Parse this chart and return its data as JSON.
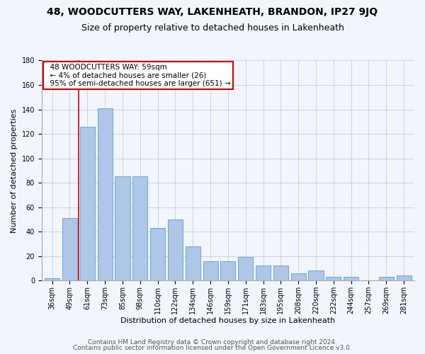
{
  "title": "48, WOODCUTTERS WAY, LAKENHEATH, BRANDON, IP27 9JQ",
  "subtitle": "Size of property relative to detached houses in Lakenheath",
  "xlabel": "Distribution of detached houses by size in Lakenheath",
  "ylabel": "Number of detached properties",
  "categories": [
    "36sqm",
    "49sqm",
    "61sqm",
    "73sqm",
    "85sqm",
    "98sqm",
    "110sqm",
    "122sqm",
    "134sqm",
    "146sqm",
    "159sqm",
    "171sqm",
    "183sqm",
    "195sqm",
    "208sqm",
    "220sqm",
    "232sqm",
    "244sqm",
    "257sqm",
    "269sqm",
    "281sqm"
  ],
  "values": [
    2,
    51,
    126,
    141,
    85,
    85,
    43,
    50,
    28,
    16,
    16,
    19,
    12,
    12,
    6,
    8,
    3,
    3,
    0,
    3,
    4
  ],
  "bar_color": "#aec6e8",
  "bar_edge_color": "#5a9fd4",
  "annotation_text_line1": "48 WOODCUTTERS WAY: 59sqm",
  "annotation_text_line2": "← 4% of detached houses are smaller (26)",
  "annotation_text_line3": "95% of semi-detached houses are larger (651) →",
  "annotation_box_color": "#ffffff",
  "annotation_box_edgecolor": "#cc0000",
  "vline_color": "#cc0000",
  "vline_x": 1.5,
  "ylim": [
    0,
    180
  ],
  "yticks": [
    0,
    20,
    40,
    60,
    80,
    100,
    120,
    140,
    160,
    180
  ],
  "footnote1": "Contains HM Land Registry data © Crown copyright and database right 2024.",
  "footnote2": "Contains public sector information licensed under the Open Government Licence v3.0.",
  "bg_color": "#f2f5fb",
  "plot_bg_color": "#f2f5fb",
  "title_fontsize": 10,
  "subtitle_fontsize": 9,
  "axis_label_fontsize": 8,
  "tick_fontsize": 7,
  "annotation_fontsize": 7.5,
  "footnote_fontsize": 6.5
}
